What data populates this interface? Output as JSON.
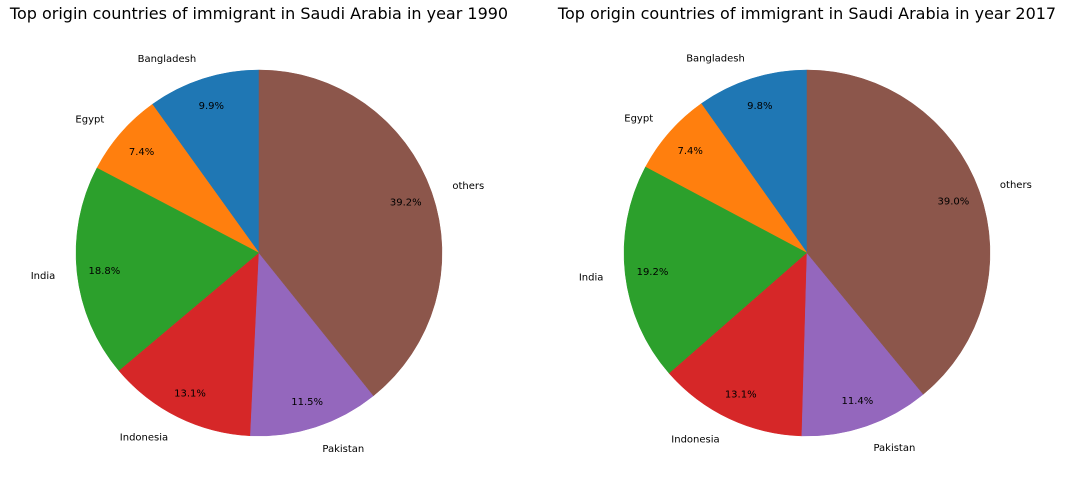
{
  "chart_data": [
    {
      "type": "pie",
      "title": "Top origin countries of immigrant in Saudi Arabia in year 1990",
      "categories": [
        "Bangladesh",
        "Egypt",
        "India",
        "Indonesia",
        "Pakistan",
        "others"
      ],
      "values": [
        9.9,
        7.4,
        18.8,
        13.1,
        11.5,
        39.2
      ],
      "value_labels": [
        "9.9%",
        "7.4%",
        "18.8%",
        "13.1%",
        "11.5%",
        "39.2%"
      ],
      "colors": [
        "#1f77b4",
        "#ff7f0e",
        "#2ca02c",
        "#d62728",
        "#9467bd",
        "#8c564b"
      ],
      "start_angle_deg": 90,
      "direction": "counterclockwise",
      "legend": "none"
    },
    {
      "type": "pie",
      "title": "Top origin countries of immigrant in Saudi Arabia in year 2017",
      "categories": [
        "Bangladesh",
        "Egypt",
        "India",
        "Indonesia",
        "Pakistan",
        "others"
      ],
      "values": [
        9.8,
        7.4,
        19.2,
        13.1,
        11.4,
        39.0
      ],
      "value_labels": [
        "9.8%",
        "7.4%",
        "19.2%",
        "13.1%",
        "11.4%",
        "39.0%"
      ],
      "colors": [
        "#1f77b4",
        "#ff7f0e",
        "#2ca02c",
        "#d62728",
        "#9467bd",
        "#8c564b"
      ],
      "start_angle_deg": 90,
      "direction": "counterclockwise",
      "legend": "none"
    }
  ]
}
